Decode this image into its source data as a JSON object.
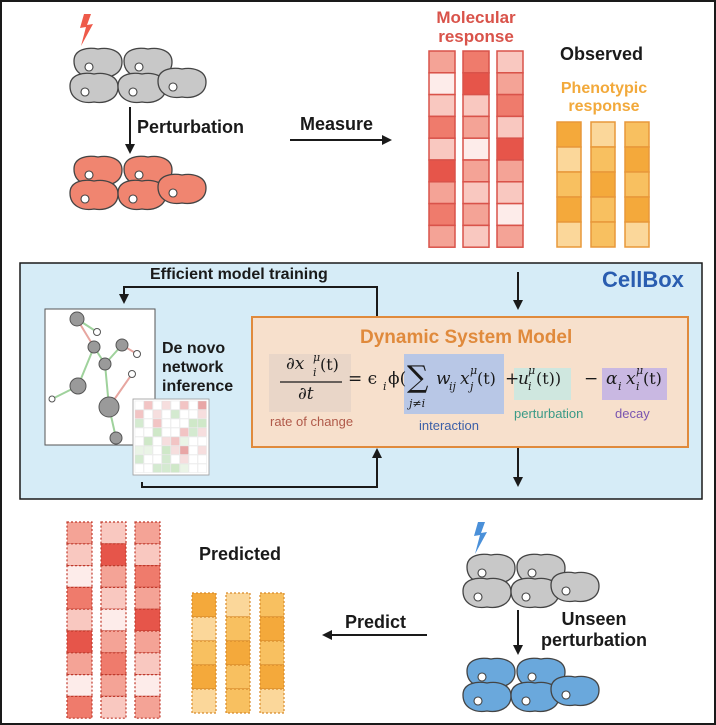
{
  "labels": {
    "perturbation": "Perturbation",
    "measure": "Measure",
    "molecular_response": "Molecular\nresponse",
    "observed": "Observed",
    "phenotypic_response": "Phenotypic\nresponse",
    "efficient_training": "Efficient model training",
    "cellbox": "CellBox",
    "de_novo": "De novo\nnetwork\ninference",
    "dsm_title": "Dynamic System Model",
    "rate_of_change": "rate of change",
    "interaction": "interaction",
    "perturbation_term": "perturbation",
    "decay": "decay",
    "predicted": "Predicted",
    "predict": "Predict",
    "unseen_perturbation": "Unseen\nperturbation"
  },
  "equation": {
    "lhs_num": "∂x",
    "lhs_sup": "μ",
    "lhs_sub": "i",
    "lhs_arg": "(t)",
    "lhs_den": "∂t",
    "eq_prefix": "= ϵ",
    "eps_sub": "i",
    "phi": "ϕ(",
    "sigma": "∑",
    "sum_index": "j≠i",
    "w": "w",
    "w_sub": "ij",
    "xj": "x",
    "xj_sup": "μ",
    "xj_sub": "j",
    "xj_arg": "(t)",
    "plus": "+",
    "u": "u",
    "u_sup": "μ",
    "u_sub": "i",
    "u_arg": "(t))",
    "minus": "−",
    "alpha": "α",
    "alpha_sub": "i",
    "xi": "x",
    "xi_sup": "μ",
    "xi_sub": "i",
    "xi_arg": "(t)"
  },
  "colors": {
    "molecular_title": "#d9534a",
    "phenotypic_title": "#f2a93b",
    "cellbox_title": "#2a5db0",
    "dsm_title": "#e08a3c",
    "rate_box": "#e9d6c8",
    "rate_text": "#b05a4a",
    "interaction_box": "#b8c7e6",
    "interaction_text": "#3b5fa8",
    "perturbation_box": "#cfe7df",
    "perturbation_text": "#3a9a86",
    "decay_box": "#c9b8e2",
    "decay_text": "#7a55b0",
    "panel_bg": "#d6ecf7",
    "dsm_bg": "#f7e0cc",
    "cell_gray": "#c8c8c8",
    "cell_red": "#f08570",
    "cell_blue": "#6aa8dc",
    "lightning_red": "#ee5a4a",
    "lightning_blue": "#4a90d9"
  }
}
